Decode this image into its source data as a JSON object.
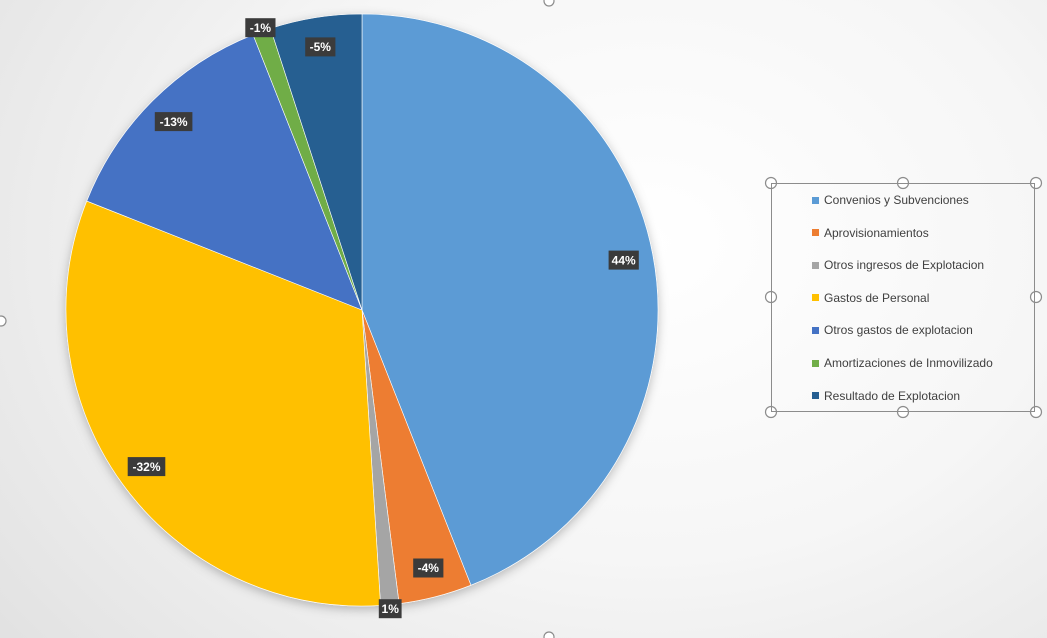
{
  "chart_data": {
    "type": "pie",
    "title": "",
    "categories": [
      "Convenios y Subvenciones",
      "Aprovisionamientos",
      "Otros ingresos de Explotacion",
      "Gastos de Personal",
      "Otros gastos de explotacion",
      "Amortizaciones de Inmovilizado",
      "Resultado de Explotacion"
    ],
    "values": [
      44,
      4,
      1,
      32,
      13,
      1,
      5
    ],
    "data_labels": [
      "44%",
      "-4%",
      "1%",
      "-32%",
      "-13%",
      "-1%",
      "-5%"
    ],
    "colors": [
      "#5b9bd5",
      "#ed7d31",
      "#a5a5a5",
      "#ffc000",
      "#4472c4",
      "#70ad47",
      "#255e91"
    ],
    "start_angle_deg": 0,
    "direction": "clockwise",
    "legend_position": "right"
  }
}
